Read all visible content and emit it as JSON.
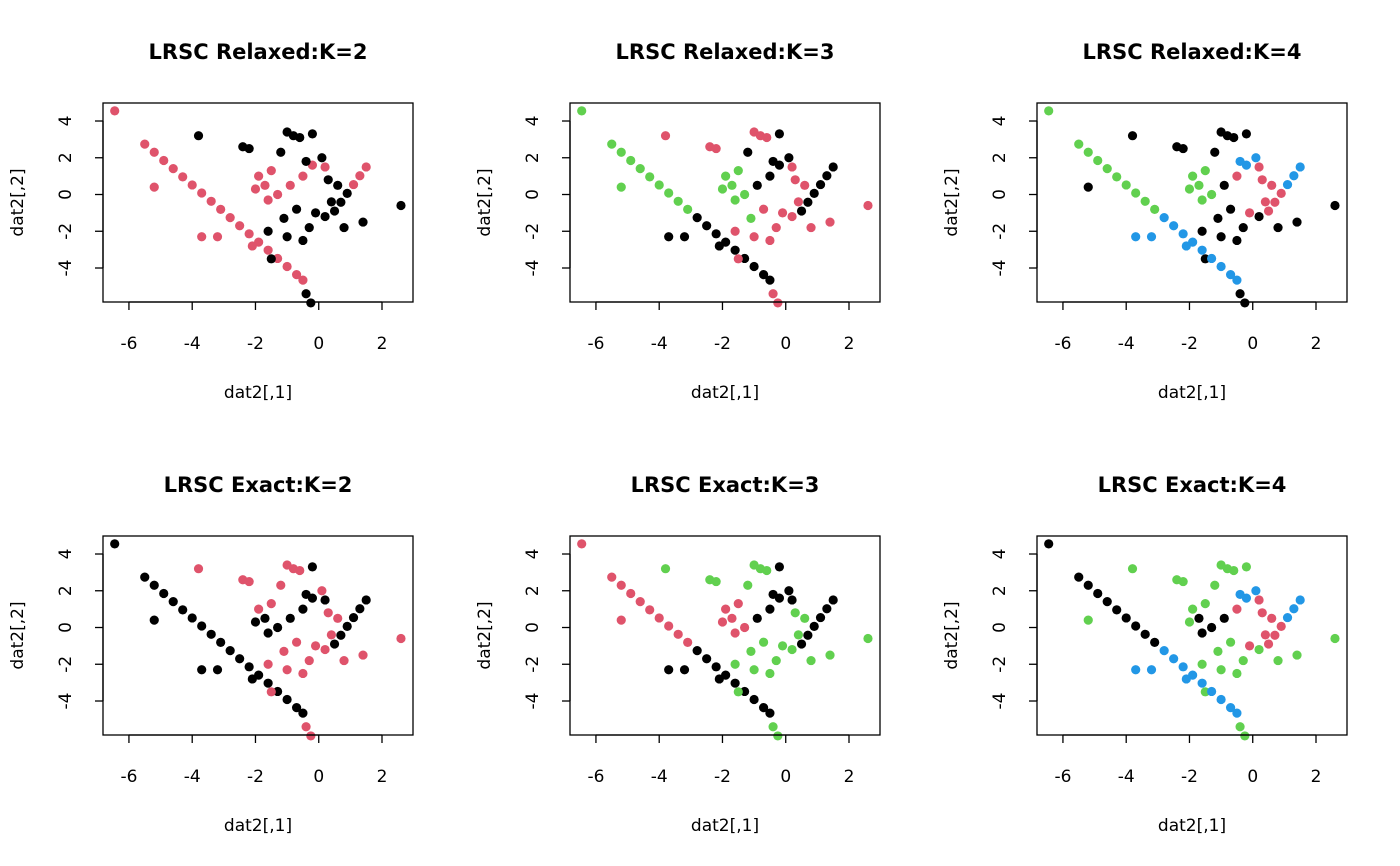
{
  "chart_data": [
    {
      "type": "scatter",
      "title": "LRSC Relaxed:K=2",
      "xlabel": "dat2[,1]",
      "ylabel": "dat2[,2]",
      "xlim": [
        -6.82,
        2.98
      ],
      "ylim": [
        -5.85,
        4.98
      ],
      "xticks": [
        -6,
        -4,
        -2,
        0,
        2
      ],
      "yticks": [
        -4,
        -2,
        0,
        2,
        4
      ],
      "series": [
        {
          "color": "#DF536B",
          "x": [
            -5.5,
            -5.2,
            -4.9,
            -4.6,
            -4.3,
            -4.0,
            -3.7,
            -3.4,
            -3.1,
            -2.8,
            -2.5,
            -2.2,
            -1.9,
            -1.6,
            -1.3,
            -1.0,
            -0.7,
            -0.5,
            1.1,
            1.3,
            1.5,
            -6.45,
            -5.2,
            -3.7,
            -3.2,
            -1.9,
            -2.0,
            -1.7,
            -1.5,
            -1.3,
            -1.6,
            -0.5,
            -0.2,
            0.2,
            -0.9,
            -2.1
          ],
          "y": [
            2.74,
            2.3,
            1.85,
            1.41,
            0.96,
            0.52,
            0.08,
            -0.37,
            -0.81,
            -1.26,
            -1.7,
            -2.14,
            -2.59,
            -3.03,
            -3.48,
            -3.92,
            -4.36,
            -4.66,
            0.54,
            1.02,
            1.5,
            4.55,
            0.4,
            -2.3,
            -2.3,
            1.0,
            0.3,
            0.5,
            1.3,
            0.0,
            -0.3,
            1.0,
            1.6,
            1.5,
            0.5,
            -2.8
          ]
        },
        {
          "color": "#000000",
          "x": [
            0.5,
            0.7,
            0.9,
            -3.8,
            2.6,
            -0.25,
            -0.4,
            1.4,
            -2.4,
            -2.2,
            -1.2,
            -1.0,
            -0.8,
            -0.6,
            -0.2,
            -0.4,
            0.1,
            0.3,
            0.6,
            -0.7,
            -1.1,
            -0.3,
            0.2,
            0.8,
            -1.6,
            -1.0,
            -0.5,
            -0.1,
            0.4,
            -1.5
          ],
          "y": [
            -0.9,
            -0.42,
            0.06,
            3.2,
            -0.6,
            -5.9,
            -5.4,
            -1.5,
            2.6,
            2.5,
            2.3,
            3.4,
            3.2,
            3.1,
            3.3,
            1.8,
            2.0,
            0.8,
            0.5,
            -0.8,
            -1.3,
            -1.8,
            -1.2,
            -1.8,
            -2.0,
            -2.3,
            -2.5,
            -1.0,
            -0.4,
            -3.5
          ]
        }
      ]
    },
    {
      "type": "scatter",
      "title": "LRSC Relaxed:K=3",
      "xlabel": "dat2[,1]",
      "ylabel": "dat2[,2]",
      "xlim": [
        -6.82,
        2.98
      ],
      "ylim": [
        -5.85,
        4.98
      ],
      "xticks": [
        -6,
        -4,
        -2,
        0,
        2
      ],
      "yticks": [
        -4,
        -2,
        0,
        2,
        4
      ],
      "series": [
        {
          "color": "#61D04F",
          "x": [
            -5.5,
            -5.2,
            -4.9,
            -4.6,
            -4.3,
            -4.0,
            -3.7,
            -3.4,
            -3.1,
            -6.45,
            -5.2,
            -1.9,
            -2.0,
            -1.7,
            -1.5,
            -1.3,
            -1.6,
            -1.1
          ],
          "y": [
            2.74,
            2.3,
            1.85,
            1.41,
            0.96,
            0.52,
            0.08,
            -0.37,
            -0.81,
            4.55,
            0.4,
            1.0,
            0.3,
            0.5,
            1.3,
            0.0,
            -0.3,
            -1.3
          ]
        },
        {
          "color": "#000000",
          "x": [
            -2.8,
            -2.5,
            -2.2,
            -1.9,
            -1.6,
            -1.3,
            -1.0,
            -0.7,
            -0.5,
            0.5,
            0.7,
            0.9,
            1.1,
            1.3,
            1.5,
            -3.7,
            -3.2,
            -1.2,
            -0.2,
            -0.4,
            0.1,
            -0.5,
            -0.2,
            -0.9,
            -2.1
          ],
          "y": [
            -1.26,
            -1.7,
            -2.14,
            -2.59,
            -3.03,
            -3.48,
            -3.92,
            -4.36,
            -4.66,
            -0.9,
            -0.42,
            0.06,
            0.54,
            1.02,
            1.5,
            -2.3,
            -2.3,
            2.3,
            3.3,
            1.8,
            2.0,
            1.0,
            1.6,
            0.5,
            -2.8
          ]
        },
        {
          "color": "#DF536B",
          "x": [
            -3.8,
            2.6,
            -0.25,
            -0.4,
            1.4,
            -2.4,
            -2.2,
            -1.0,
            -0.8,
            -0.6,
            0.2,
            0.3,
            0.6,
            -0.7,
            -0.3,
            0.2,
            0.8,
            -1.6,
            -1.0,
            -0.5,
            -0.1,
            0.4,
            -1.5
          ],
          "y": [
            3.2,
            -0.6,
            -5.9,
            -5.4,
            -1.5,
            2.6,
            2.5,
            3.4,
            3.2,
            3.1,
            1.5,
            0.8,
            0.5,
            -0.8,
            -1.8,
            -1.2,
            -1.8,
            -2.0,
            -2.3,
            -2.5,
            -1.0,
            -0.4,
            -3.5
          ]
        }
      ]
    },
    {
      "type": "scatter",
      "title": "LRSC Relaxed:K=4",
      "xlabel": "dat2[,1]",
      "ylabel": "dat2[,2]",
      "xlim": [
        -6.82,
        2.98
      ],
      "ylim": [
        -5.85,
        4.98
      ],
      "xticks": [
        -6,
        -4,
        -2,
        0,
        2
      ],
      "yticks": [
        -4,
        -2,
        0,
        2,
        4
      ],
      "series": [
        {
          "color": "#000000",
          "x": [
            -5.2,
            -3.8,
            2.6,
            -0.25,
            -0.4,
            1.4,
            -2.4,
            -2.2,
            -1.2,
            -1.0,
            -0.8,
            -0.6,
            -0.2,
            -0.9,
            -0.7,
            -1.1,
            -0.3,
            0.2,
            0.8,
            -1.6,
            -1.0,
            -0.5,
            -1.5
          ],
          "y": [
            0.4,
            3.2,
            -0.6,
            -5.9,
            -5.4,
            -1.5,
            2.6,
            2.5,
            2.3,
            3.4,
            3.2,
            3.1,
            3.3,
            0.5,
            -0.8,
            -1.3,
            -1.8,
            -1.2,
            -1.8,
            -2.0,
            -2.3,
            -2.5,
            -3.5
          ]
        },
        {
          "color": "#DF536B",
          "x": [
            0.5,
            0.7,
            0.9,
            -0.5,
            0.2,
            0.3,
            0.6,
            -0.1,
            0.4
          ],
          "y": [
            -0.9,
            -0.42,
            0.06,
            1.0,
            1.5,
            0.8,
            0.5,
            -1.0,
            -0.4
          ]
        },
        {
          "color": "#61D04F",
          "x": [
            -5.5,
            -5.2,
            -4.9,
            -4.6,
            -4.3,
            -4.0,
            -3.7,
            -3.4,
            -3.1,
            -6.45,
            -1.9,
            -2.0,
            -1.7,
            -1.5,
            -1.3,
            -1.6
          ],
          "y": [
            2.74,
            2.3,
            1.85,
            1.41,
            0.96,
            0.52,
            0.08,
            -0.37,
            -0.81,
            4.55,
            1.0,
            0.3,
            0.5,
            1.3,
            0.0,
            -0.3
          ]
        },
        {
          "color": "#2297E6",
          "x": [
            -2.8,
            -2.5,
            -2.2,
            -1.9,
            -1.6,
            -1.3,
            -1.0,
            -0.7,
            -0.5,
            1.1,
            1.3,
            1.5,
            -3.7,
            -3.2,
            -0.4,
            0.1,
            -0.2,
            -2.1
          ],
          "y": [
            -1.26,
            -1.7,
            -2.14,
            -2.59,
            -3.03,
            -3.48,
            -3.92,
            -4.36,
            -4.66,
            0.54,
            1.02,
            1.5,
            -2.3,
            -2.3,
            1.8,
            2.0,
            1.6,
            -2.8
          ]
        }
      ]
    },
    {
      "type": "scatter",
      "title": "LRSC Exact:K=2",
      "xlabel": "dat2[,1]",
      "ylabel": "dat2[,2]",
      "xlim": [
        -6.82,
        2.98
      ],
      "ylim": [
        -5.85,
        4.98
      ],
      "xticks": [
        -6,
        -4,
        -2,
        0,
        2
      ],
      "yticks": [
        -4,
        -2,
        0,
        2,
        4
      ],
      "series": [
        {
          "color": "#000000",
          "x": [
            -5.5,
            -5.2,
            -4.9,
            -4.6,
            -4.3,
            -4.0,
            -3.7,
            -3.4,
            -3.1,
            -2.8,
            -2.5,
            -2.2,
            -1.9,
            -1.6,
            -1.3,
            -1.0,
            -0.7,
            -0.5,
            0.5,
            0.7,
            0.9,
            1.1,
            1.3,
            1.5,
            -6.45,
            -5.2,
            -3.7,
            -3.2,
            -2.0,
            -1.7,
            -1.3,
            -1.6,
            -0.2,
            -0.4,
            -0.5,
            -0.2,
            0.2,
            -0.9,
            -2.1
          ],
          "y": [
            2.74,
            2.3,
            1.85,
            1.41,
            0.96,
            0.52,
            0.08,
            -0.37,
            -0.81,
            -1.26,
            -1.7,
            -2.14,
            -2.59,
            -3.03,
            -3.48,
            -3.92,
            -4.36,
            -4.66,
            -0.9,
            -0.42,
            0.06,
            0.54,
            1.02,
            1.5,
            4.55,
            0.4,
            -2.3,
            -2.3,
            0.3,
            0.5,
            0.0,
            -0.3,
            3.3,
            1.8,
            1.0,
            1.6,
            1.5,
            0.5,
            -2.8
          ]
        },
        {
          "color": "#DF536B",
          "x": [
            -3.8,
            2.6,
            -0.25,
            -0.4,
            1.4,
            -2.4,
            -2.2,
            -1.9,
            -1.5,
            -1.2,
            -1.0,
            -0.8,
            -0.6,
            0.1,
            0.3,
            0.6,
            -0.7,
            -1.1,
            -0.3,
            0.2,
            0.8,
            -1.6,
            -1.0,
            -0.5,
            -0.1,
            0.4,
            -1.5
          ],
          "y": [
            3.2,
            -0.6,
            -5.9,
            -5.4,
            -1.5,
            2.6,
            2.5,
            1.0,
            1.3,
            2.3,
            3.4,
            3.2,
            3.1,
            2.0,
            0.8,
            0.5,
            -0.8,
            -1.3,
            -1.8,
            -1.2,
            -1.8,
            -2.0,
            -2.3,
            -2.5,
            -1.0,
            -0.4,
            -3.5
          ]
        }
      ]
    },
    {
      "type": "scatter",
      "title": "LRSC Exact:K=3",
      "xlabel": "dat2[,1]",
      "ylabel": "dat2[,2]",
      "xlim": [
        -6.82,
        2.98
      ],
      "ylim": [
        -5.85,
        4.98
      ],
      "xticks": [
        -6,
        -4,
        -2,
        0,
        2
      ],
      "yticks": [
        -4,
        -2,
        0,
        2,
        4
      ],
      "series": [
        {
          "color": "#000000",
          "x": [
            -2.8,
            -2.5,
            -2.2,
            -1.9,
            -1.6,
            -1.3,
            -1.0,
            -0.7,
            -0.5,
            0.5,
            0.7,
            0.9,
            1.1,
            1.3,
            1.5,
            -3.7,
            -3.2,
            -0.2,
            -0.4,
            0.1,
            -0.5,
            -0.2,
            0.2,
            -0.9,
            -2.1
          ],
          "y": [
            -1.26,
            -1.7,
            -2.14,
            -2.59,
            -3.03,
            -3.48,
            -3.92,
            -4.36,
            -4.66,
            -0.9,
            -0.42,
            0.06,
            0.54,
            1.02,
            1.5,
            -2.3,
            -2.3,
            3.3,
            1.8,
            2.0,
            1.0,
            1.6,
            1.5,
            0.5,
            -2.8
          ]
        },
        {
          "color": "#DF536B",
          "x": [
            -5.5,
            -5.2,
            -4.9,
            -4.6,
            -4.3,
            -4.0,
            -3.7,
            -3.4,
            -3.1,
            -6.45,
            -5.2,
            -1.9,
            -2.0,
            -1.7,
            -1.5,
            -1.3,
            -1.6
          ],
          "y": [
            2.74,
            2.3,
            1.85,
            1.41,
            0.96,
            0.52,
            0.08,
            -0.37,
            -0.81,
            4.55,
            0.4,
            1.0,
            0.3,
            0.5,
            1.3,
            0.0,
            -0.3
          ]
        },
        {
          "color": "#61D04F",
          "x": [
            -3.8,
            2.6,
            -0.25,
            -0.4,
            1.4,
            -2.4,
            -2.2,
            -1.2,
            -1.0,
            -0.8,
            -0.6,
            0.3,
            0.6,
            -0.7,
            -1.1,
            -0.3,
            0.2,
            0.8,
            -1.6,
            -1.0,
            -0.5,
            -0.1,
            0.4,
            -1.5
          ],
          "y": [
            3.2,
            -0.6,
            -5.9,
            -5.4,
            -1.5,
            2.6,
            2.5,
            2.3,
            3.4,
            3.2,
            3.1,
            0.8,
            0.5,
            -0.8,
            -1.3,
            -1.8,
            -1.2,
            -1.8,
            -2.0,
            -2.3,
            -2.5,
            -1.0,
            -0.4,
            -3.5
          ]
        }
      ]
    },
    {
      "type": "scatter",
      "title": "LRSC Exact:K=4",
      "xlabel": "dat2[,1]",
      "ylabel": "dat2[,2]",
      "xlim": [
        -6.82,
        2.98
      ],
      "ylim": [
        -5.85,
        4.98
      ],
      "xticks": [
        -6,
        -4,
        -2,
        0,
        2
      ],
      "yticks": [
        -4,
        -2,
        0,
        2,
        4
      ],
      "series": [
        {
          "color": "#000000",
          "x": [
            -5.5,
            -5.2,
            -4.9,
            -4.6,
            -4.3,
            -4.0,
            -3.7,
            -3.4,
            -3.1,
            -6.45,
            -1.7,
            -1.3,
            -1.6,
            -0.9
          ],
          "y": [
            2.74,
            2.3,
            1.85,
            1.41,
            0.96,
            0.52,
            0.08,
            -0.37,
            -0.81,
            4.55,
            0.5,
            0.0,
            -0.3,
            0.5
          ]
        },
        {
          "color": "#DF536B",
          "x": [
            0.5,
            0.7,
            0.9,
            -0.5,
            0.2,
            0.3,
            0.6,
            -0.1,
            0.4
          ],
          "y": [
            -0.9,
            -0.42,
            0.06,
            1.0,
            1.5,
            0.8,
            0.5,
            -1.0,
            -0.4
          ]
        },
        {
          "color": "#61D04F",
          "x": [
            -5.2,
            -3.8,
            2.6,
            -0.25,
            -0.4,
            1.4,
            -2.4,
            -2.2,
            -1.9,
            -2.0,
            -1.5,
            -1.2,
            -1.0,
            -0.8,
            -0.6,
            -0.2,
            -0.7,
            -1.1,
            -0.3,
            0.2,
            0.8,
            -1.6,
            -1.0,
            -0.5,
            -1.5
          ],
          "y": [
            0.4,
            3.2,
            -0.6,
            -5.9,
            -5.4,
            -1.5,
            2.6,
            2.5,
            1.0,
            0.3,
            1.3,
            2.3,
            3.4,
            3.2,
            3.1,
            3.3,
            -0.8,
            -1.3,
            -1.8,
            -1.2,
            -1.8,
            -2.0,
            -2.3,
            -2.5,
            -3.5
          ]
        },
        {
          "color": "#2297E6",
          "x": [
            -2.8,
            -2.5,
            -2.2,
            -1.9,
            -1.6,
            -1.3,
            -1.0,
            -0.7,
            -0.5,
            1.1,
            1.3,
            1.5,
            -3.7,
            -3.2,
            -0.4,
            0.1,
            -0.2,
            -2.1
          ],
          "y": [
            -1.26,
            -1.7,
            -2.14,
            -2.59,
            -3.03,
            -3.48,
            -3.92,
            -4.36,
            -4.66,
            0.54,
            1.02,
            1.5,
            -2.3,
            -2.3,
            1.8,
            2.0,
            1.6,
            -2.8
          ]
        }
      ]
    }
  ]
}
